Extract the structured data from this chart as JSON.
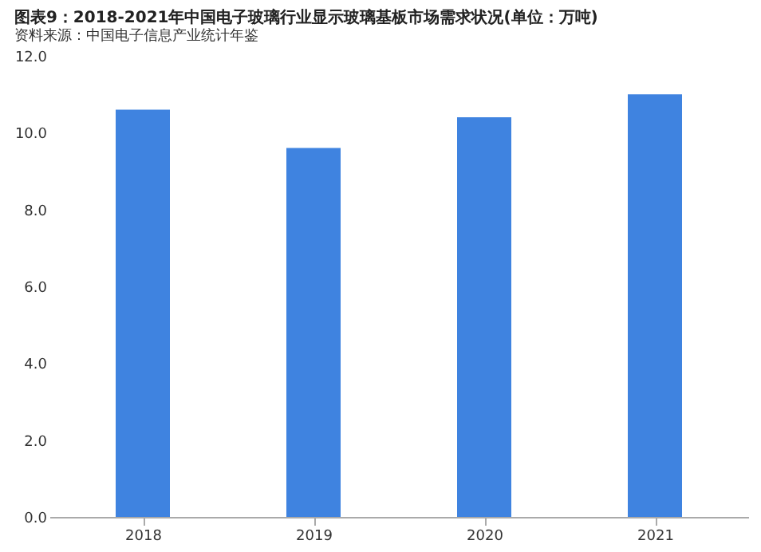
{
  "chart_data": {
    "type": "bar",
    "title": "图表9：2018-2021年中国电子玻璃行业显示玻璃基板市场需求状况(单位：万吨)",
    "categories": [
      "2018",
      "2019",
      "2020",
      "2021"
    ],
    "values": [
      10.6,
      9.6,
      10.4,
      11.0
    ],
    "color": "#3f83e0",
    "ylim": [
      0,
      12
    ],
    "yticks": [
      {
        "value": 0,
        "label": "0.0"
      },
      {
        "value": 2,
        "label": "2.0"
      },
      {
        "value": 4,
        "label": "4.0"
      },
      {
        "value": 6,
        "label": "6.0"
      },
      {
        "value": 8,
        "label": "8.0"
      },
      {
        "value": 10,
        "label": "10.0"
      },
      {
        "value": 12,
        "label": "12.0"
      }
    ],
    "grid": false,
    "annotations": [
      "资料来源：中国电子信息产业统计年鉴"
    ]
  }
}
